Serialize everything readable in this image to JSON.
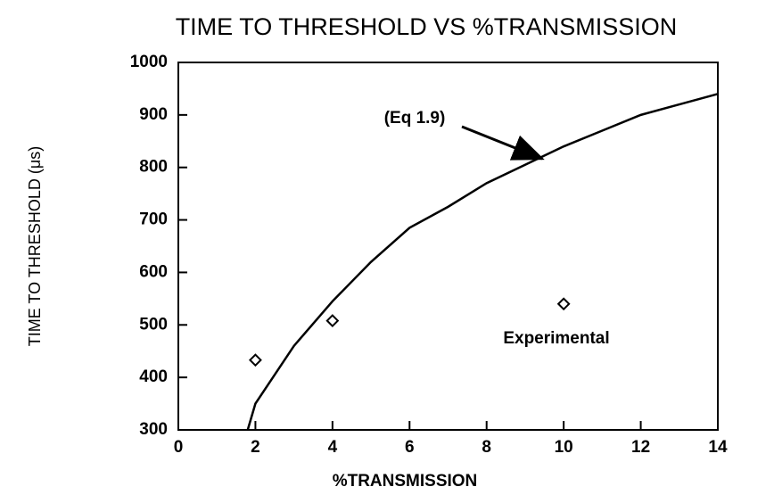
{
  "chart_data": {
    "type": "line",
    "title": "TIME TO THRESHOLD VS %TRANSMISSION",
    "x_label": "%TRANSMISSION",
    "y_label": "TIME TO THRESHOLD  (μs)",
    "xlim": [
      0,
      14
    ],
    "xticks": [
      0,
      2,
      4,
      6,
      8,
      10,
      12,
      14
    ],
    "ylim": [
      300,
      1000
    ],
    "yticks": [
      300,
      400,
      500,
      600,
      700,
      800,
      900,
      1000
    ],
    "grid": false,
    "annotations": [
      "(Eq 1.9)",
      "Experimental"
    ],
    "series": [
      {
        "name": "Eq 1.9",
        "type": "line",
        "color": "#000000",
        "x": [
          1.8,
          2,
          3,
          4,
          5,
          6,
          7,
          8,
          9,
          10,
          11,
          12,
          13,
          14
        ],
        "values": [
          300,
          350,
          460,
          545,
          620,
          685,
          725,
          770,
          805,
          840,
          870,
          900,
          920,
          940
        ]
      },
      {
        "name": "Experimental",
        "type": "scatter",
        "color": "#000000",
        "x": [
          2,
          4,
          10
        ],
        "values": [
          433,
          508,
          540
        ]
      }
    ]
  }
}
